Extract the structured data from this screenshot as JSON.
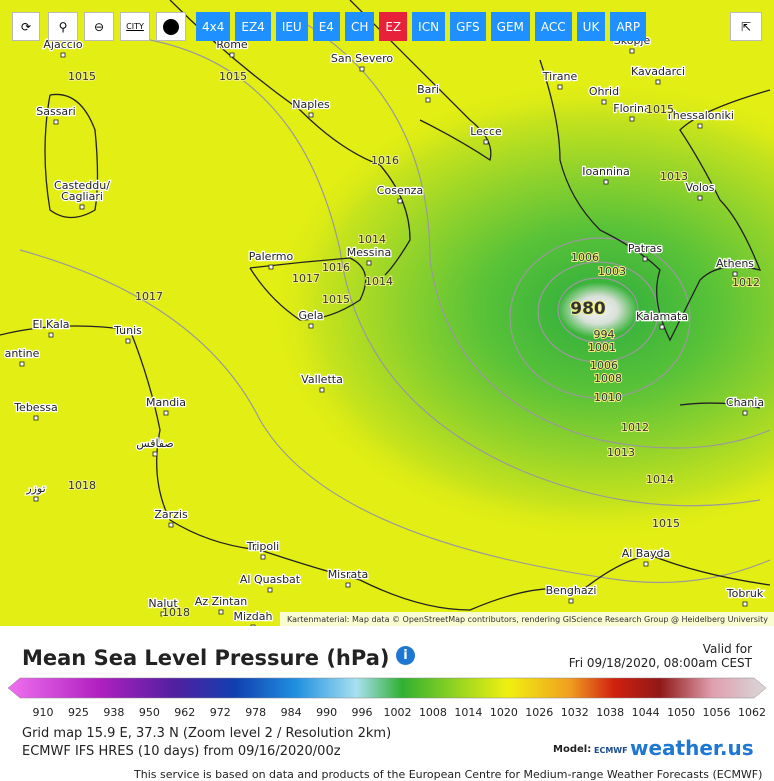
{
  "toolbar": {
    "city_button": "CITY",
    "models": [
      "4x4",
      "EZ4",
      "IEU",
      "E4",
      "CH",
      "EZ",
      "ICN",
      "GFS",
      "GEM",
      "ACC",
      "UK",
      "ARP"
    ]
  },
  "map": {
    "cities": [
      "Ajaccio",
      "Rome",
      "San Severo",
      "Skopje",
      "Tirane",
      "Kavadarci",
      "Bari",
      "Ohrid",
      "Sassari",
      "Naples",
      "Florina",
      "Thessaloniki",
      "Lecce",
      "Ioannina",
      "Casteddu/",
      "Cagliari",
      "Cosenza",
      "Volos",
      "Patras",
      "Palermo",
      "Messina",
      "Athens",
      "Kalamata",
      "Gela",
      "El Kala",
      "Tunis",
      "antine",
      "Valletta",
      "Mandia",
      "Tebessa",
      "Chania",
      "صفاقس",
      "توزر",
      "Zarzis",
      "Tripoli",
      "Al Quasbat",
      "Misrata",
      "Benghazi",
      "Al Bayda",
      "Tobruk",
      "Nalut",
      "Az Zintan",
      "Mizdah"
    ],
    "isobars": [
      1015,
      1015,
      1015,
      1013,
      1016,
      1014,
      1016,
      1017,
      1014,
      1015,
      1017,
      1012,
      980,
      994,
      1001,
      1006,
      1008,
      1010,
      1012,
      1013,
      1014,
      1015,
      1018,
      1018,
      1006,
      1003
    ],
    "attribution": "Kartenmaterial: Map data © OpenStreetMap contributors, rendering GIScience Research Group @ Heidelberg University"
  },
  "legend": {
    "title": "Mean Sea Level Pressure (hPa)",
    "valid_label": "Valid for",
    "valid_time": "Fri 09/18/2020, 08:00am CEST",
    "scale": [
      910,
      925,
      938,
      950,
      962,
      972,
      978,
      984,
      990,
      996,
      1002,
      1008,
      1014,
      1020,
      1026,
      1032,
      1038,
      1044,
      1050,
      1056,
      1062
    ]
  },
  "info": {
    "grid": "Grid map 15.9 E, 37.3 N (Zoom level 2 / Resolution 2km)",
    "run": "ECMWF IFS HRES (10 days) from 09/16/2020/00z"
  },
  "model_label": "Model:",
  "logo_ecmwf": "ECMWF",
  "logo_weather": "weather.us",
  "footer": "This service is based on data and products of the European Centre for Medium-range Weather Forecasts (ECMWF)"
}
